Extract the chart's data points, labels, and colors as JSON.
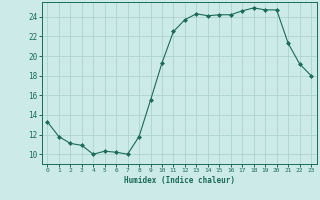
{
  "x": [
    0,
    1,
    2,
    3,
    4,
    5,
    6,
    7,
    8,
    9,
    10,
    11,
    12,
    13,
    14,
    15,
    16,
    17,
    18,
    19,
    20,
    21,
    22,
    23
  ],
  "y": [
    13.3,
    11.8,
    11.1,
    10.9,
    10.0,
    10.3,
    10.2,
    10.0,
    11.8,
    15.5,
    19.3,
    22.5,
    23.7,
    24.3,
    24.1,
    24.2,
    24.2,
    24.6,
    24.9,
    24.7,
    24.7,
    21.3,
    19.2,
    18.0
  ],
  "line_color": "#1a6b5a",
  "marker": "D",
  "marker_size": 2.0,
  "bg_color": "#cceae7",
  "grid_color": "#add4cf",
  "tick_color": "#1a6b5a",
  "label_color": "#1a6b5a",
  "xlabel": "Humidex (Indice chaleur)",
  "ylim": [
    9.0,
    25.5
  ],
  "yticks": [
    10,
    12,
    14,
    16,
    18,
    20,
    22,
    24
  ],
  "xticks": [
    0,
    1,
    2,
    3,
    4,
    5,
    6,
    7,
    8,
    9,
    10,
    11,
    12,
    13,
    14,
    15,
    16,
    17,
    18,
    19,
    20,
    21,
    22,
    23
  ]
}
